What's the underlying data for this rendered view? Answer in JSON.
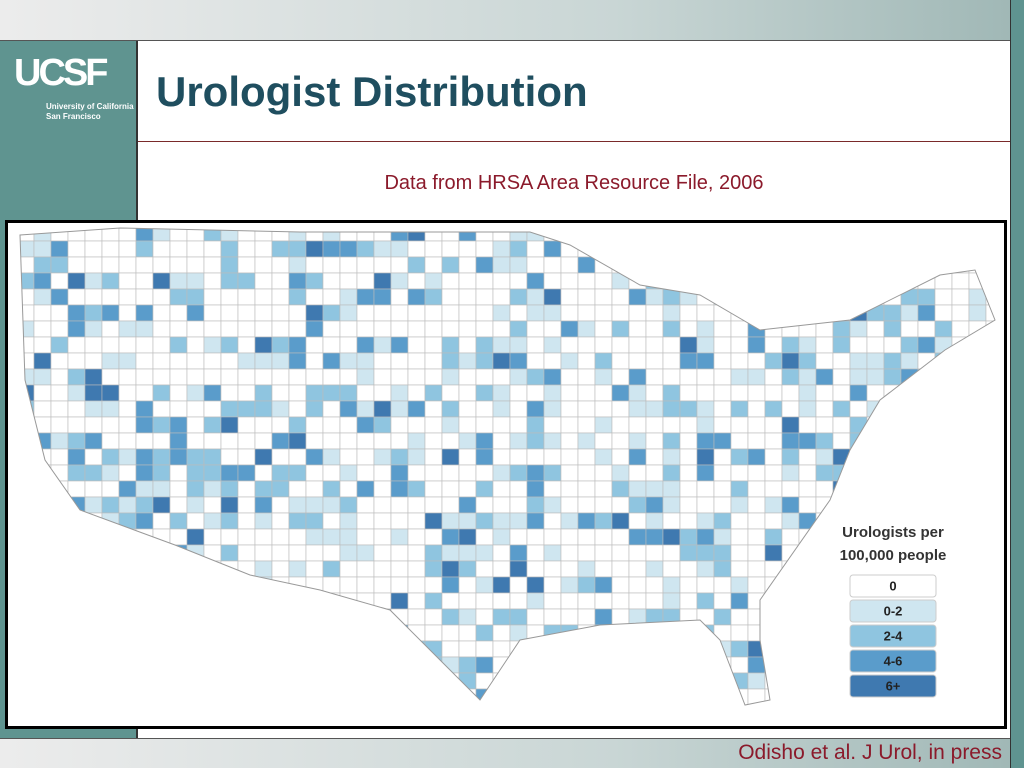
{
  "header": {
    "logo": "UCSF",
    "logo_line1": "University of California",
    "logo_line2": "San Francisco",
    "title": "Urologist Distribution"
  },
  "subtitle": "Data from HRSA Area Resource File, 2006",
  "map": {
    "legend": {
      "title_line1": "Urologists per",
      "title_line2": "100,000 people",
      "items": [
        {
          "label": "0",
          "color": "#ffffff"
        },
        {
          "label": "0-2",
          "color": "#cfe6f0"
        },
        {
          "label": "2-4",
          "color": "#8fc5e0"
        },
        {
          "label": "4-6",
          "color": "#5a9ccb"
        },
        {
          "label": "6+",
          "color": "#3f79b0"
        }
      ]
    }
  },
  "footer": {
    "citation": "Odisho et al. J Urol, in press"
  }
}
